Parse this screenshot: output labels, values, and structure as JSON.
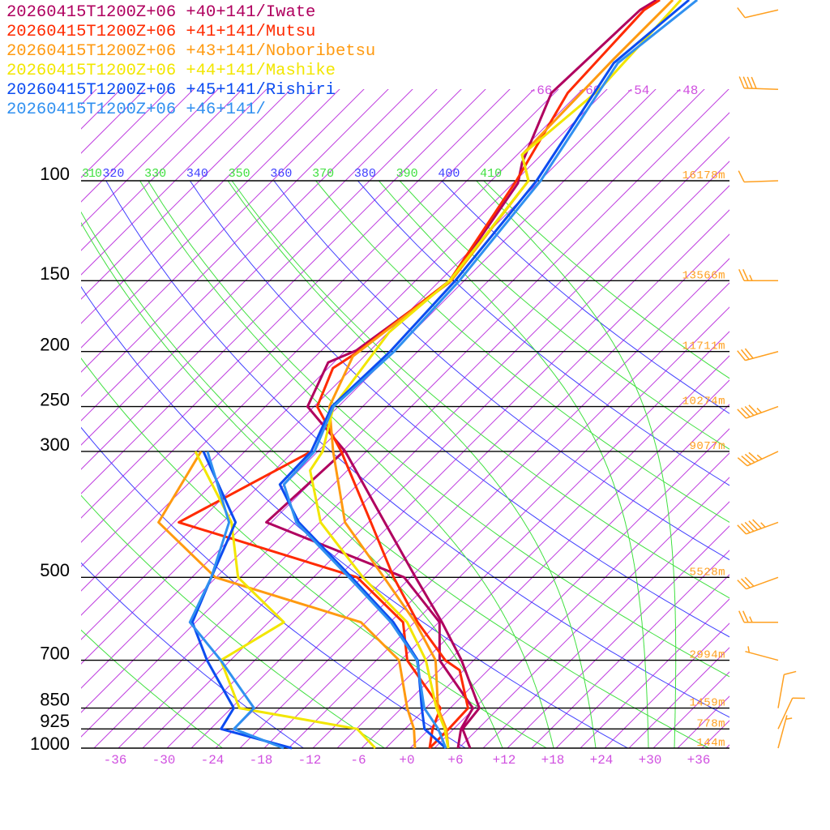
{
  "legend": [
    {
      "label": "20260415T1200Z+06 +40+141/Iwate",
      "color": "#b0005f"
    },
    {
      "label": "20260415T1200Z+06 +41+141/Mutsu",
      "color": "#ff2a00"
    },
    {
      "label": "20260415T1200Z+06 +43+141/Noboribetsu",
      "color": "#ff9a10"
    },
    {
      "label": "20260415T1200Z+06 +44+141/Mashike",
      "color": "#f2e600"
    },
    {
      "label": "20260415T1200Z+06 +45+141/Rishiri",
      "color": "#0c4cf0"
    },
    {
      "label": "20260415T1200Z+06 +46+141/",
      "color": "#3090f0"
    }
  ],
  "chart_data": {
    "type": "skew-t log-p",
    "x_unit": "degC",
    "y_unit": "hPa",
    "y_scale": "log",
    "ylim": [
      1000,
      100
    ],
    "pressure_tick_labels": [
      "100",
      "150",
      "200",
      "250",
      "300",
      "500",
      "700",
      "850",
      "925",
      "1000"
    ],
    "pressure_ticks": [
      100,
      150,
      200,
      250,
      300,
      500,
      700,
      850,
      925,
      1000
    ],
    "temperature_tick_labels": [
      "-36",
      "-30",
      "-24",
      "-18",
      "-12",
      "-6",
      "+0",
      "+6",
      "+12",
      "+18",
      "+24",
      "+30",
      "+36"
    ],
    "temperature_ticks": [
      -36,
      -30,
      -24,
      -18,
      -12,
      -6,
      0,
      6,
      12,
      18,
      24,
      30,
      36
    ],
    "isotherm_top_labels": [
      {
        "t": -66,
        "label": "-66"
      },
      {
        "t": -60,
        "label": "-60"
      },
      {
        "t": -54,
        "label": "-54"
      },
      {
        "t": -48,
        "label": "-48"
      }
    ],
    "isotherm_interval": 3,
    "dry_adiabat_labels": [
      {
        "theta": 310,
        "label": "310",
        "color": "#40e040"
      },
      {
        "theta": 320,
        "label": "320",
        "color": "#4040ff"
      },
      {
        "theta": 330,
        "label": "330",
        "color": "#40e040"
      },
      {
        "theta": 340,
        "label": "340",
        "color": "#4040ff"
      },
      {
        "theta": 350,
        "label": "350",
        "color": "#40e040"
      },
      {
        "theta": 360,
        "label": "360",
        "color": "#4040ff"
      },
      {
        "theta": 370,
        "label": "370",
        "color": "#40e040"
      },
      {
        "theta": 380,
        "label": "380",
        "color": "#4040ff"
      },
      {
        "theta": 390,
        "label": "390",
        "color": "#40e040"
      },
      {
        "theta": 400,
        "label": "400",
        "color": "#4040ff"
      },
      {
        "theta": 410,
        "label": "410",
        "color": "#40e040"
      }
    ],
    "dry_adiabat_range": [
      250,
      410
    ],
    "moist_adiabat_start_temps_1000hPa": [
      11.4,
      17.7,
      22.9,
      29.4,
      32.6
    ],
    "height_labels": [
      {
        "p": 100,
        "label": "16178m"
      },
      {
        "p": 150,
        "label": "13566m"
      },
      {
        "p": 200,
        "label": "11711m"
      },
      {
        "p": 250,
        "label": "10274m"
      },
      {
        "p": 300,
        "label": "9077m"
      },
      {
        "p": 500,
        "label": "5528m"
      },
      {
        "p": 700,
        "label": "2994m"
      },
      {
        "p": 850,
        "label": "1459m"
      },
      {
        "p": 925,
        "label": "778m"
      },
      {
        "p": 1000,
        "label": "144m"
      }
    ],
    "series": [
      {
        "name": "Iwate",
        "color": "#b0005f",
        "temperature": [
          [
            1000,
            7.4
          ],
          [
            925,
            4.1
          ],
          [
            850,
            3.6
          ],
          [
            700,
            -4.5
          ],
          [
            600,
            -11.6
          ],
          [
            500,
            -20.4
          ],
          [
            400,
            -31.0
          ],
          [
            300,
            -44.6
          ],
          [
            250,
            -54.8
          ],
          [
            209,
            -57.7
          ],
          [
            199,
            -55.7
          ],
          [
            151,
            -52.6
          ],
          [
            101,
            -56.4
          ],
          [
            93,
            -58.4
          ],
          [
            70,
            -63.4
          ],
          [
            50,
            -62.7
          ],
          [
            48,
            -61.9
          ]
        ],
        "dewpoint": [
          [
            1000,
            5.9
          ],
          [
            925,
            3.9
          ],
          [
            850,
            2.8
          ],
          [
            700,
            -7.2
          ],
          [
            600,
            -11.9
          ],
          [
            500,
            -21.8
          ],
          [
            400,
            -45.6
          ],
          [
            300,
            -44.8
          ]
        ]
      },
      {
        "name": "Mutsu",
        "color": "#ff2a00",
        "temperature": [
          [
            1000,
            2.4
          ],
          [
            925,
            2.4
          ],
          [
            850,
            2.2
          ],
          [
            729,
            -3.5
          ],
          [
            700,
            -6.5
          ],
          [
            600,
            -14.6
          ],
          [
            500,
            -23.1
          ],
          [
            400,
            -32.7
          ],
          [
            300,
            -45.1
          ],
          [
            250,
            -53.6
          ],
          [
            214,
            -56.4
          ],
          [
            201,
            -55.4
          ],
          [
            150,
            -52.8
          ],
          [
            100,
            -56.9
          ],
          [
            70,
            -61.4
          ],
          [
            50,
            -62.2
          ],
          [
            48,
            -61.5
          ]
        ],
        "dewpoint": [
          [
            1000,
            2.4
          ],
          [
            925,
            0.4
          ],
          [
            850,
            -1.2
          ],
          [
            700,
            -11.2
          ],
          [
            600,
            -16.4
          ],
          [
            500,
            -27.6
          ],
          [
            400,
            -56.4
          ],
          [
            300,
            -48.8
          ]
        ]
      },
      {
        "name": "Noboribetsu",
        "color": "#ff9a10",
        "temperature": [
          [
            1000,
            4.7
          ],
          [
            925,
            2.1
          ],
          [
            850,
            -1.5
          ],
          [
            700,
            -7.7
          ],
          [
            600,
            -14.9
          ],
          [
            500,
            -24.3
          ],
          [
            400,
            -35.9
          ],
          [
            300,
            -46.1
          ],
          [
            250,
            -52.1
          ],
          [
            204,
            -55.4
          ],
          [
            150,
            -52.6
          ],
          [
            100,
            -55.4
          ],
          [
            90,
            -59.4
          ],
          [
            61,
            -59.9
          ],
          [
            48,
            -59.9
          ]
        ],
        "dewpoint": [
          [
            1000,
            0.6
          ],
          [
            925,
            -1.9
          ],
          [
            850,
            -5.3
          ],
          [
            700,
            -12.2
          ],
          [
            600,
            -21.6
          ],
          [
            500,
            -45.1
          ],
          [
            400,
            -58.9
          ],
          [
            300,
            -62.4
          ]
        ]
      },
      {
        "name": "Mashike",
        "color": "#f2e600",
        "temperature": [
          [
            1000,
            4.7
          ],
          [
            925,
            1.9
          ],
          [
            850,
            -1.7
          ],
          [
            700,
            -8.9
          ],
          [
            600,
            -15.9
          ],
          [
            500,
            -26.9
          ],
          [
            400,
            -38.9
          ],
          [
            324,
            -46.6
          ],
          [
            300,
            -47.4
          ],
          [
            250,
            -51.6
          ],
          [
            185,
            -53.9
          ],
          [
            150,
            -52.8
          ],
          [
            100,
            -55.4
          ],
          [
            90,
            -59.4
          ],
          [
            69,
            -57.9
          ],
          [
            48,
            -58.9
          ]
        ],
        "dewpoint": [
          [
            1000,
            -4.3
          ],
          [
            925,
            -8.9
          ],
          [
            850,
            -26.0
          ],
          [
            700,
            -34.2
          ],
          [
            600,
            -31.1
          ],
          [
            500,
            -42.3
          ],
          [
            400,
            -49.9
          ],
          [
            300,
            -63.1
          ]
        ]
      },
      {
        "name": "Rishiri",
        "color": "#0c4cf0",
        "temperature": [
          [
            1000,
            4.4
          ],
          [
            925,
            -0.6
          ],
          [
            850,
            -3.5
          ],
          [
            700,
            -9.9
          ],
          [
            600,
            -17.6
          ],
          [
            500,
            -28.3
          ],
          [
            400,
            -41.6
          ],
          [
            343,
            -48.6
          ],
          [
            300,
            -48.8
          ],
          [
            250,
            -51.8
          ],
          [
            200,
            -51.4
          ],
          [
            150,
            -52.1
          ],
          [
            100,
            -54.4
          ],
          [
            62,
            -59.4
          ],
          [
            48,
            -57.9
          ]
        ],
        "dewpoint": [
          [
            1000,
            -14.6
          ],
          [
            925,
            -25.7
          ],
          [
            850,
            -26.7
          ],
          [
            700,
            -35.9
          ],
          [
            600,
            -42.4
          ],
          [
            500,
            -45.6
          ],
          [
            400,
            -49.4
          ],
          [
            300,
            -62.1
          ]
        ]
      },
      {
        "name": "",
        "color": "#3090f0",
        "temperature": [
          [
            1000,
            4.4
          ],
          [
            925,
            1.1
          ],
          [
            850,
            -3.2
          ],
          [
            700,
            -10.0
          ],
          [
            600,
            -17.9
          ],
          [
            500,
            -28.6
          ],
          [
            400,
            -41.9
          ],
          [
            343,
            -48.1
          ],
          [
            300,
            -48.4
          ],
          [
            250,
            -51.6
          ],
          [
            200,
            -50.9
          ],
          [
            150,
            -51.6
          ],
          [
            100,
            -53.9
          ],
          [
            62,
            -58.9
          ],
          [
            48,
            -56.9
          ]
        ],
        "dewpoint": [
          [
            1000,
            -15.6
          ],
          [
            925,
            -24.1
          ],
          [
            850,
            -24.2
          ],
          [
            700,
            -34.2
          ],
          [
            600,
            -42.7
          ],
          [
            500,
            -45.6
          ],
          [
            400,
            -50.2
          ],
          [
            300,
            -61.6
          ]
        ]
      }
    ],
    "wind_barbs": {
      "color": "#ffa020",
      "levels": [
        {
          "p": 50,
          "dir": 257,
          "speed_kt": 10
        },
        {
          "p": 69,
          "dir": 272,
          "speed_kt": 40
        },
        {
          "p": 100,
          "dir": 268,
          "speed_kt": 10
        },
        {
          "p": 150,
          "dir": 270,
          "speed_kt": 25
        },
        {
          "p": 200,
          "dir": 255,
          "speed_kt": 30
        },
        {
          "p": 250,
          "dir": 250,
          "speed_kt": 45
        },
        {
          "p": 300,
          "dir": 245,
          "speed_kt": 45
        },
        {
          "p": 400,
          "dir": 250,
          "speed_kt": 55
        },
        {
          "p": 500,
          "dir": 250,
          "speed_kt": 30
        },
        {
          "p": 600,
          "dir": 270,
          "speed_kt": 25
        },
        {
          "p": 700,
          "dir": 285,
          "speed_kt": 5
        },
        {
          "p": 850,
          "dir": 10,
          "speed_kt": 10
        },
        {
          "p": 925,
          "dir": 25,
          "speed_kt": 10
        },
        {
          "p": 1000,
          "dir": 15,
          "speed_kt": 5
        }
      ]
    }
  }
}
